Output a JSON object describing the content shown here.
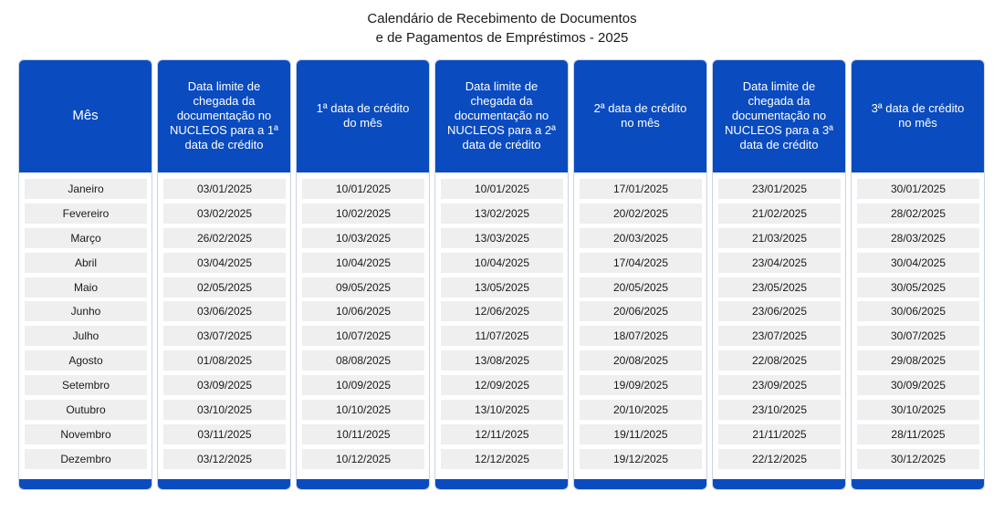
{
  "title": {
    "line1": "Calendário de Recebimento de Documentos",
    "line2": "e de Pagamentos de Empréstimos - 2025"
  },
  "colors": {
    "header": "#0a4bbf",
    "cell": "#efefef"
  },
  "headers": {
    "mes": "Mês",
    "limite1": "Data limite de chegada da documentação no NUCLEOS para a 1ª data de crédito",
    "credito1": "1ª data de crédito do mês",
    "limite2": "Data limite de chegada da documentação no NUCLEOS  para a 2ª data de crédito",
    "credito2": "2ª data de crédito no mês",
    "limite3": "Data limite de chegada da documentação no NUCLEOS para a 3ª data de crédito",
    "credito3": "3ª data de crédito no mês"
  },
  "rows": [
    {
      "mes": "Janeiro",
      "limite1": "03/01/2025",
      "credito1": "10/01/2025",
      "limite2": "10/01/2025",
      "credito2": "17/01/2025",
      "limite3": "23/01/2025",
      "credito3": "30/01/2025"
    },
    {
      "mes": "Fevereiro",
      "limite1": "03/02/2025",
      "credito1": "10/02/2025",
      "limite2": "13/02/2025",
      "credito2": "20/02/2025",
      "limite3": "21/02/2025",
      "credito3": "28/02/2025"
    },
    {
      "mes": "Março",
      "limite1": "26/02/2025",
      "credito1": "10/03/2025",
      "limite2": "13/03/2025",
      "credito2": "20/03/2025",
      "limite3": "21/03/2025",
      "credito3": "28/03/2025"
    },
    {
      "mes": "Abril",
      "limite1": "03/04/2025",
      "credito1": "10/04/2025",
      "limite2": "10/04/2025",
      "credito2": "17/04/2025",
      "limite3": "23/04/2025",
      "credito3": "30/04/2025"
    },
    {
      "mes": "Maio",
      "limite1": "02/05/2025",
      "credito1": "09/05/2025",
      "limite2": "13/05/2025",
      "credito2": "20/05/2025",
      "limite3": "23/05/2025",
      "credito3": "30/05/2025"
    },
    {
      "mes": "Junho",
      "limite1": "03/06/2025",
      "credito1": "10/06/2025",
      "limite2": "12/06/2025",
      "credito2": "20/06/2025",
      "limite3": "23/06/2025",
      "credito3": "30/06/2025"
    },
    {
      "mes": "Julho",
      "limite1": "03/07/2025",
      "credito1": "10/07/2025",
      "limite2": "11/07/2025",
      "credito2": "18/07/2025",
      "limite3": "23/07/2025",
      "credito3": "30/07/2025"
    },
    {
      "mes": "Agosto",
      "limite1": "01/08/2025",
      "credito1": "08/08/2025",
      "limite2": "13/08/2025",
      "credito2": "20/08/2025",
      "limite3": "22/08/2025",
      "credito3": "29/08/2025"
    },
    {
      "mes": "Setembro",
      "limite1": "03/09/2025",
      "credito1": "10/09/2025",
      "limite2": "12/09/2025",
      "credito2": "19/09/2025",
      "limite3": "23/09/2025",
      "credito3": "30/09/2025"
    },
    {
      "mes": "Outubro",
      "limite1": "03/10/2025",
      "credito1": "10/10/2025",
      "limite2": "13/10/2025",
      "credito2": "20/10/2025",
      "limite3": "23/10/2025",
      "credito3": "30/10/2025"
    },
    {
      "mes": "Novembro",
      "limite1": "03/11/2025",
      "credito1": "10/11/2025",
      "limite2": "12/11/2025",
      "credito2": "19/11/2025",
      "limite3": "21/11/2025",
      "credito3": "28/11/2025"
    },
    {
      "mes": "Dezembro",
      "limite1": "03/12/2025",
      "credito1": "10/12/2025",
      "limite2": "12/12/2025",
      "credito2": "19/12/2025",
      "limite3": "22/12/2025",
      "credito3": "30/12/2025"
    }
  ]
}
